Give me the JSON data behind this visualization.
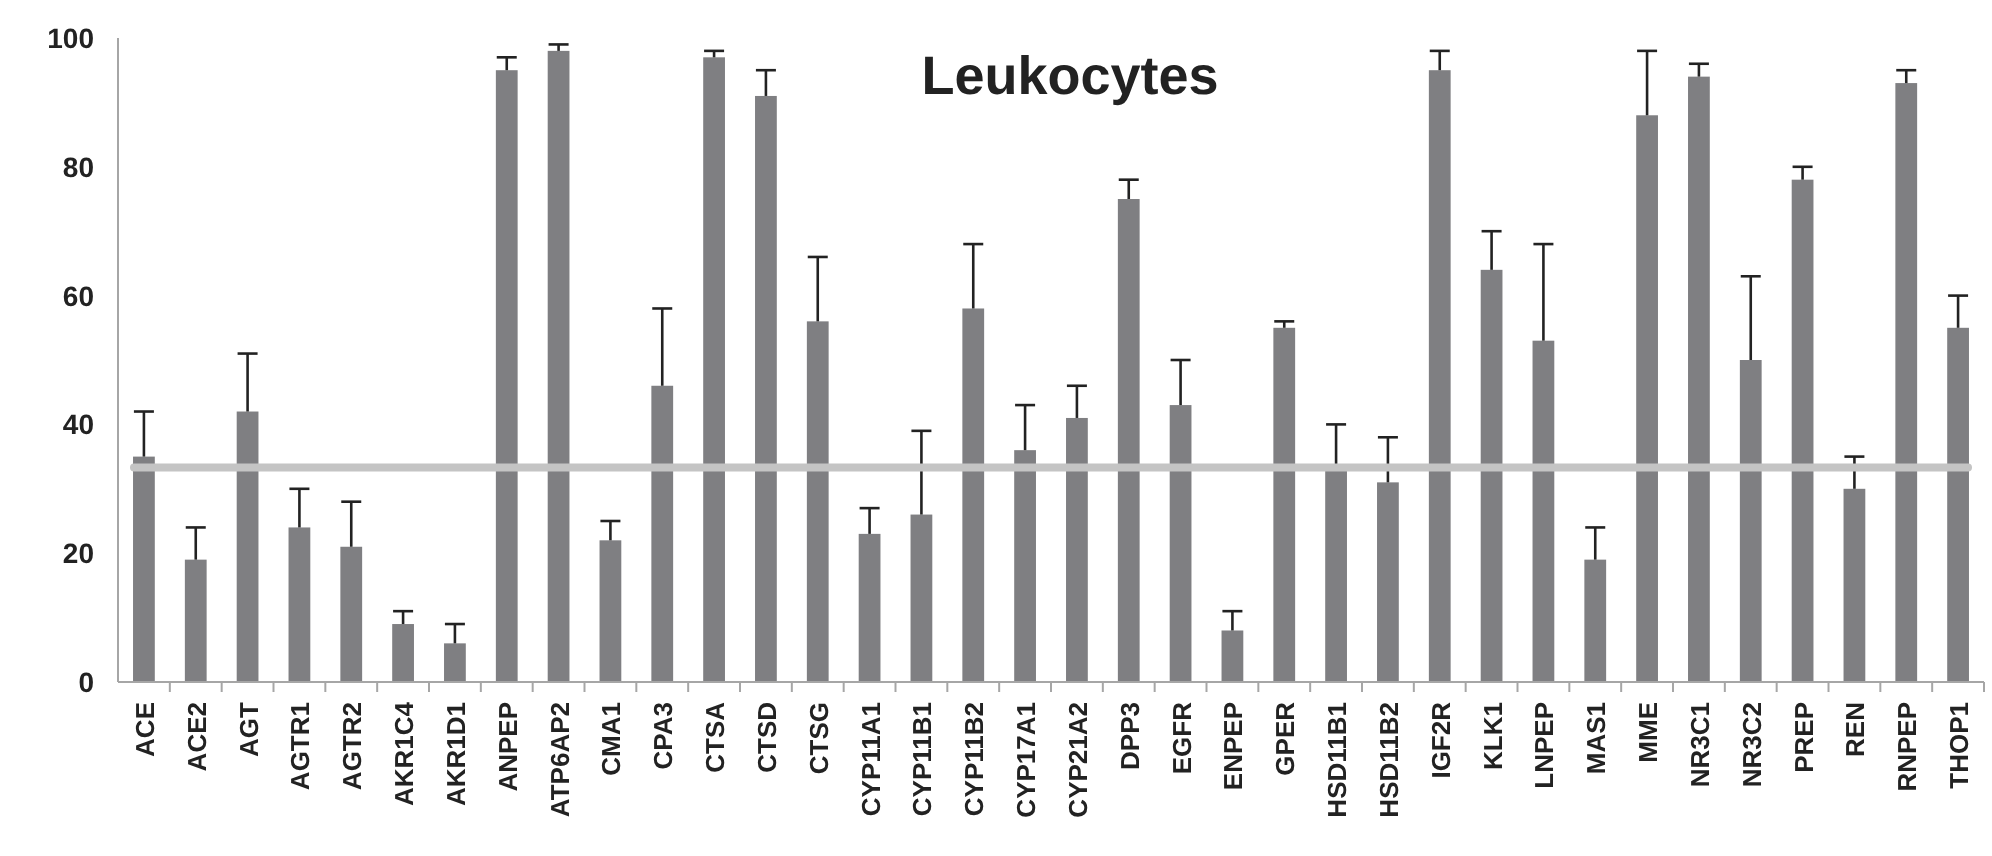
{
  "chart_data": {
    "type": "bar",
    "title": "Leukocytes",
    "categories": [
      "ACE",
      "ACE2",
      "AGT",
      "AGTR1",
      "AGTR2",
      "AKR1C4",
      "AKR1D1",
      "ANPEP",
      "ATP6AP2",
      "CMA1",
      "CPA3",
      "CTSA",
      "CTSD",
      "CTSG",
      "CYP11A1",
      "CYP11B1",
      "CYP11B2",
      "CYP17A1",
      "CYP21A2",
      "DPP3",
      "EGFR",
      "ENPEP",
      "GPER",
      "HSD11B1",
      "HSD11B2",
      "IGF2R",
      "KLK1",
      "LNPEP",
      "MAS1",
      "MME",
      "NR3C1",
      "NR3C2",
      "PREP",
      "REN",
      "RNPEP",
      "THOP1"
    ],
    "values": [
      35,
      19,
      42,
      24,
      21,
      9,
      6,
      95,
      98,
      22,
      46,
      97,
      91,
      56,
      23,
      26,
      58,
      36,
      41,
      75,
      43,
      8,
      55,
      33,
      31,
      95,
      64,
      53,
      19,
      88,
      94,
      50,
      78,
      30,
      93,
      55
    ],
    "errors": [
      [
        35,
        42
      ],
      [
        19,
        24
      ],
      [
        42,
        51
      ],
      [
        24,
        30
      ],
      [
        21,
        28
      ],
      [
        9,
        11
      ],
      [
        6,
        9
      ],
      [
        95,
        97
      ],
      [
        98,
        99
      ],
      [
        22,
        25
      ],
      [
        46,
        58
      ],
      [
        97,
        98
      ],
      [
        91,
        95
      ],
      [
        56,
        66
      ],
      [
        23,
        27
      ],
      [
        26,
        39
      ],
      [
        58,
        68
      ],
      [
        36,
        43
      ],
      [
        41,
        46
      ],
      [
        75,
        78
      ],
      [
        43,
        50
      ],
      [
        8,
        11
      ],
      [
        55,
        56
      ],
      [
        33,
        40
      ],
      [
        31,
        38
      ],
      [
        95,
        98
      ],
      [
        64,
        70
      ],
      [
        53,
        68
      ],
      [
        19,
        24
      ],
      [
        88,
        98
      ],
      [
        94,
        96
      ],
      [
        50,
        63
      ],
      [
        78,
        80
      ],
      [
        30,
        35
      ],
      [
        93,
        95
      ],
      [
        55,
        60
      ]
    ],
    "color": "#7f7f82",
    "ylim": [
      0,
      100
    ],
    "yticks": [
      0,
      20,
      40,
      60,
      80,
      100
    ],
    "ref_lines": [
      {
        "axis": "y",
        "value": 33.3,
        "color": "#c4c4c4"
      }
    ],
    "grid": false
  }
}
